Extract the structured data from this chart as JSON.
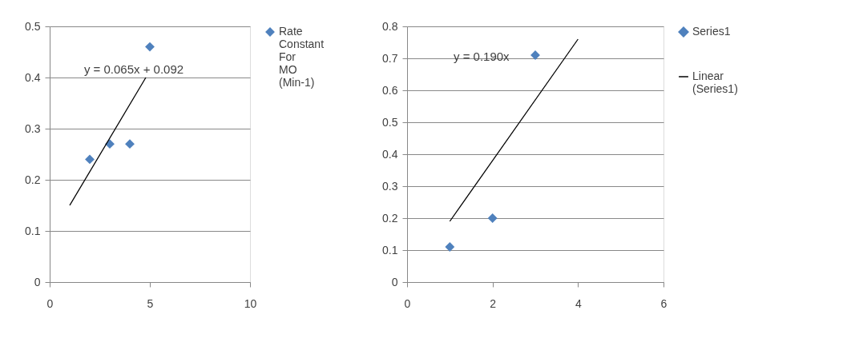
{
  "chart_data": [
    {
      "type": "scatter",
      "grid": "y",
      "legend": "right",
      "xlim": [
        0,
        10
      ],
      "xticks": [
        0,
        5,
        10
      ],
      "ylim": [
        0,
        0.5
      ],
      "yticks": [
        0,
        0.1,
        0.2,
        0.3,
        0.4,
        0.5
      ],
      "series": [
        {
          "name": "Rate Constant For MO (Min-1)",
          "marker": "diamond",
          "color": "#4f81bd",
          "x": [
            2,
            3,
            4,
            5
          ],
          "values": [
            0.24,
            0.27,
            0.27,
            0.46
          ]
        },
        {
          "type": "line",
          "color": "#000000",
          "x": [
            1,
            4.8
          ],
          "values": [
            0.15,
            0.4
          ]
        }
      ],
      "annotations": [
        "y = 0.065x + 0.092"
      ]
    },
    {
      "type": "scatter",
      "grid": "y",
      "legend": "right",
      "xlim": [
        0,
        6
      ],
      "xticks": [
        0,
        2,
        4,
        6
      ],
      "ylim": [
        0,
        0.8
      ],
      "yticks": [
        0,
        0.1,
        0.2,
        0.3,
        0.4,
        0.5,
        0.6,
        0.7,
        0.8
      ],
      "series": [
        {
          "name": "Series1",
          "marker": "diamond",
          "color": "#4f81bd",
          "x": [
            1,
            2,
            3
          ],
          "values": [
            0.11,
            0.2,
            0.71
          ]
        },
        {
          "name": "Linear (Series1)",
          "type": "line",
          "color": "#000000",
          "x": [
            1,
            4
          ],
          "values": [
            0.19,
            0.76
          ]
        }
      ],
      "annotations": [
        "y = 0.190x"
      ]
    }
  ]
}
